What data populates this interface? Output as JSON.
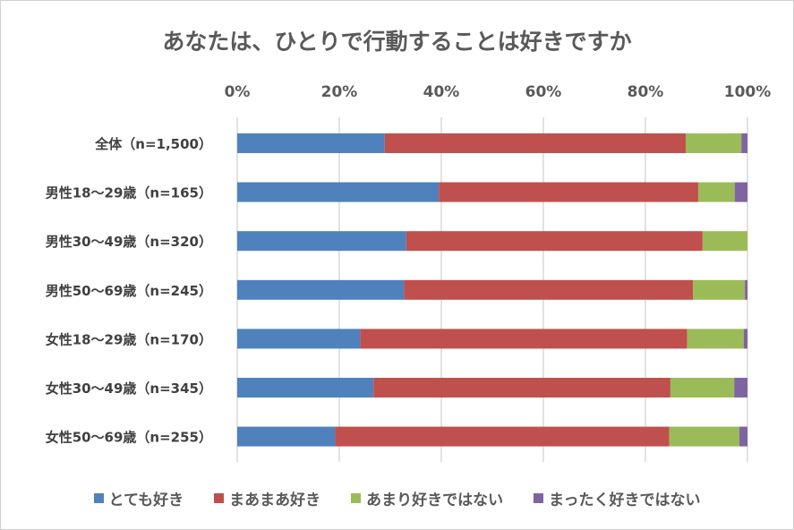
{
  "chart_data": {
    "type": "bar",
    "orientation": "horizontal",
    "stacked": "percent",
    "title": "あなたは、ひとりで行動することは好きですか",
    "categories": [
      "全体（n=1,500）",
      "男性18～29歳（n=165）",
      "男性30～49歳（n=320）",
      "男性50～69歳（n=245）",
      "女性18～29歳（n=170）",
      "女性30～49歳（n=345）",
      "女性50～69歳（n=255）"
    ],
    "x_ticks": [
      "0%",
      "20%",
      "40%",
      "60%",
      "80%",
      "100%"
    ],
    "xlim": [
      0,
      100
    ],
    "grid": true,
    "legend_position": "bottom",
    "series": [
      {
        "name": "とても好き",
        "color": "#4f81bd",
        "values": [
          28.9,
          39.5,
          33.1,
          32.7,
          24.1,
          26.7,
          19.2
        ]
      },
      {
        "name": "まあまあ好き",
        "color": "#c0504d",
        "values": [
          59.0,
          50.9,
          58.1,
          56.6,
          64.1,
          58.2,
          65.5
        ]
      },
      {
        "name": "あまり好きではない",
        "color": "#9bbb59",
        "values": [
          10.9,
          7.1,
          8.8,
          10.2,
          11.1,
          12.5,
          13.7
        ]
      },
      {
        "name": "まったく好きではない",
        "color": "#8064a2",
        "values": [
          1.2,
          2.5,
          0,
          0.5,
          0.7,
          2.6,
          1.6
        ]
      }
    ]
  }
}
